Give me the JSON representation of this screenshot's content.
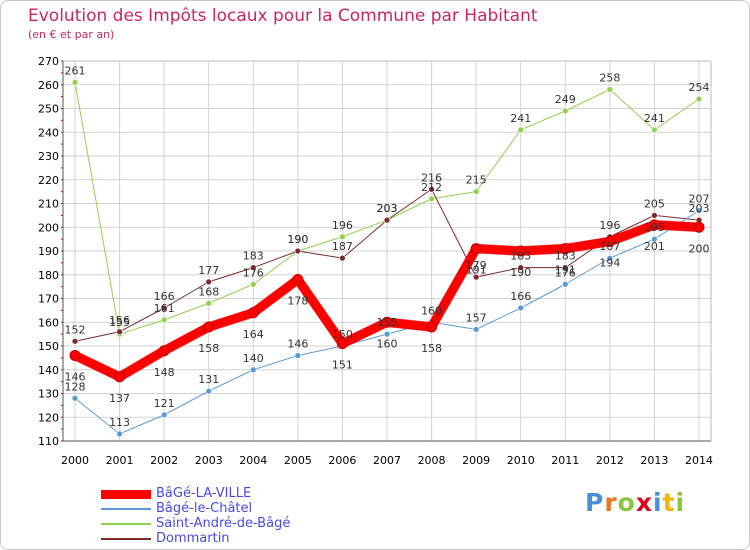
{
  "colors": {
    "title": "#c8285a",
    "axis_text": "#000000",
    "grid": "#d2d2d2",
    "legend_text": "#4a4ae0"
  },
  "chart_data": {
    "type": "line",
    "title": "Evolution des Impôts locaux pour la Commune par Habitant",
    "subtitle": "(en € et par an)",
    "xlabel": "",
    "ylabel": "",
    "x": [
      2000,
      2001,
      2002,
      2003,
      2004,
      2005,
      2006,
      2007,
      2008,
      2009,
      2010,
      2011,
      2012,
      2013,
      2014
    ],
    "ylim": [
      110,
      270
    ],
    "yticks": [
      110,
      120,
      130,
      140,
      150,
      160,
      170,
      180,
      190,
      200,
      210,
      220,
      230,
      240,
      250,
      260,
      270
    ],
    "grid": true,
    "legend_position": "bottom-left",
    "series": [
      {
        "name": "Saint-André-de-Bâgé",
        "color": "#92d050",
        "line_width": 1,
        "values": [
          261,
          155,
          161,
          168,
          176,
          190,
          196,
          203,
          212,
          215,
          241,
          249,
          258,
          241,
          254
        ]
      },
      {
        "name": "Dommartin",
        "color": "#7b2b2b",
        "line_width": 1,
        "values": [
          152,
          156,
          166,
          177,
          183,
          190,
          187,
          203,
          216,
          179,
          183,
          183,
          196,
          205,
          203
        ]
      },
      {
        "name": "Bâgé-le-Châtel",
        "color": "#5b9bd5",
        "line_width": 1,
        "values": [
          128,
          113,
          121,
          131,
          140,
          146,
          150,
          155,
          160,
          157,
          166,
          176,
          187,
          195,
          207
        ]
      },
      {
        "name": "BâGé-LA-VILLE",
        "color": "#ff0000",
        "line_width": 9,
        "values": [
          146,
          137,
          148,
          158,
          164,
          178,
          151,
          160,
          158,
          191,
          190,
          191,
          194,
          201,
          200
        ]
      }
    ]
  },
  "legend": [
    {
      "label": "BâGé-LA-VILLE",
      "color": "#ff0000",
      "thickness": 9
    },
    {
      "label": "Bâgé-le-Châtel",
      "color": "#5b9bd5",
      "thickness": 2
    },
    {
      "label": "Saint-André-de-Bâgé",
      "color": "#92d050",
      "thickness": 2
    },
    {
      "label": "Dommartin",
      "color": "#7b2b2b",
      "thickness": 2
    }
  ],
  "logo": {
    "letters": [
      "P",
      "r",
      "o",
      "x",
      "i",
      "t",
      "i"
    ],
    "colors": [
      "#4a90d9",
      "#e87722",
      "#8cc63f",
      "#e2001a",
      "#4a90d9",
      "#f2b600",
      "#8cc63f"
    ]
  }
}
